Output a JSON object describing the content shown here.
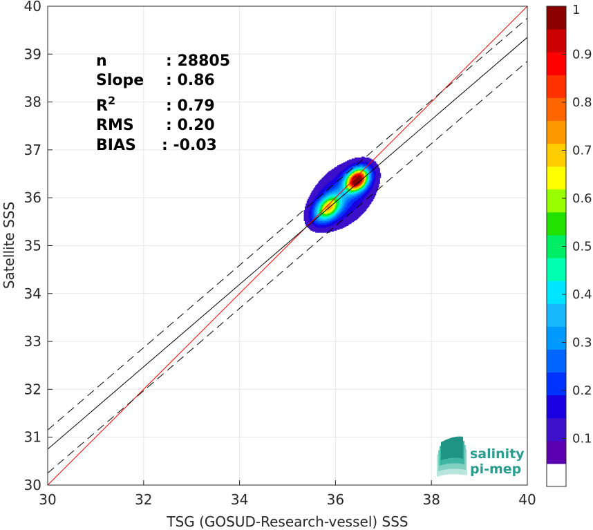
{
  "chart_data": {
    "type": "scatter",
    "title": "",
    "xlabel": "TSG (GOSUD-Research-vessel) SSS",
    "ylabel": "Satellite SSS",
    "xlim": [
      30,
      40
    ],
    "ylim": [
      30,
      40
    ],
    "xticks": [
      30,
      32,
      34,
      36,
      38,
      40
    ],
    "yticks": [
      30,
      31,
      32,
      33,
      34,
      35,
      36,
      37,
      38,
      39,
      40
    ],
    "grid": true,
    "stats": [
      {
        "label": "n",
        "value": ": 28805"
      },
      {
        "label": "Slope",
        "value": ": 0.86"
      },
      {
        "label": "R",
        "sup": "2",
        "value": ": 0.79"
      },
      {
        "label": "RMS",
        "value": ": 0.20"
      },
      {
        "label": "BIAS",
        "value": ": -0.03"
      }
    ],
    "lines": [
      {
        "name": "identity",
        "slope": 1.0,
        "intercept": 0.0,
        "color": "#ff0000",
        "style": "solid"
      },
      {
        "name": "regression",
        "slope": 0.86,
        "intercept": 4.95,
        "color": "#000000",
        "style": "solid"
      },
      {
        "name": "regression-plus-offset",
        "slope": 0.86,
        "intercept": 5.35,
        "color": "#000000",
        "style": "dashed"
      },
      {
        "name": "regression-minus-offset",
        "slope": 0.86,
        "intercept": 4.45,
        "color": "#000000",
        "style": "dashed"
      }
    ],
    "density_peaks": [
      {
        "x": 36.45,
        "y": 36.38,
        "sx": 0.18,
        "sy": 0.13,
        "amp": 1.0
      },
      {
        "x": 35.85,
        "y": 35.8,
        "sx": 0.22,
        "sy": 0.14,
        "amp": 0.58
      },
      {
        "x": 36.15,
        "y": 36.05,
        "sx": 0.55,
        "sy": 0.35,
        "amp": 0.18
      }
    ],
    "colorbar": {
      "min": 0,
      "max": 1,
      "ticks": [
        0.1,
        0.2,
        0.3,
        0.4,
        0.5,
        0.6,
        0.7,
        0.8,
        0.9,
        1
      ],
      "tick_labels": [
        "0.1",
        "0.2",
        "0.3",
        "0.4",
        "0.5",
        "0.6",
        "0.7",
        "0.8",
        "0.9",
        "1"
      ],
      "colors": [
        "#ffffff",
        "#5a00b0",
        "#3d10c9",
        "#1a00e0",
        "#0033ff",
        "#0066ff",
        "#0099ff",
        "#19b8ff",
        "#00e5ff",
        "#00ffb0",
        "#00ee66",
        "#22e000",
        "#99ff00",
        "#ffff00",
        "#ffcc00",
        "#ff9900",
        "#ff6600",
        "#ff3300",
        "#ff0000",
        "#cc0000",
        "#8b0000"
      ]
    }
  },
  "logo": {
    "line1": "salinity",
    "line2": "pi-mep",
    "icon": "wave-stack-icon"
  }
}
